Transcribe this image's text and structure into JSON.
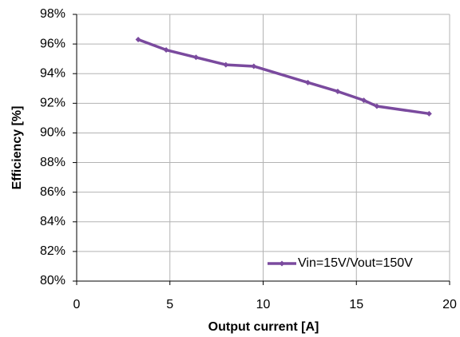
{
  "chart_data": {
    "type": "line",
    "xlabel": "Output current [A]",
    "ylabel": "Efficiency [%]",
    "x": [
      3.3,
      4.8,
      6.4,
      8.0,
      9.5,
      12.4,
      14.0,
      15.4,
      16.1,
      18.9
    ],
    "series": [
      {
        "name": "Vin=15V/Vout=150V",
        "color": "#7a4a9e",
        "values": [
          96.3,
          95.6,
          95.1,
          94.6,
          94.5,
          93.4,
          92.8,
          92.2,
          91.8,
          91.3
        ]
      }
    ],
    "xlim": [
      0,
      20
    ],
    "xticks": [
      0,
      5,
      10,
      15,
      20
    ],
    "ylim": [
      80,
      98
    ],
    "yticks": [
      {
        "value": 80,
        "label": "80%"
      },
      {
        "value": 82,
        "label": "82%"
      },
      {
        "value": 84,
        "label": "84%"
      },
      {
        "value": 86,
        "label": "86%"
      },
      {
        "value": 88,
        "label": "88%"
      },
      {
        "value": 90,
        "label": "90%"
      },
      {
        "value": 92,
        "label": "92%"
      },
      {
        "value": 94,
        "label": "94%"
      },
      {
        "value": 96,
        "label": "96%"
      },
      {
        "value": 98,
        "label": "98%"
      }
    ],
    "grid": true,
    "legend": "lower right"
  }
}
